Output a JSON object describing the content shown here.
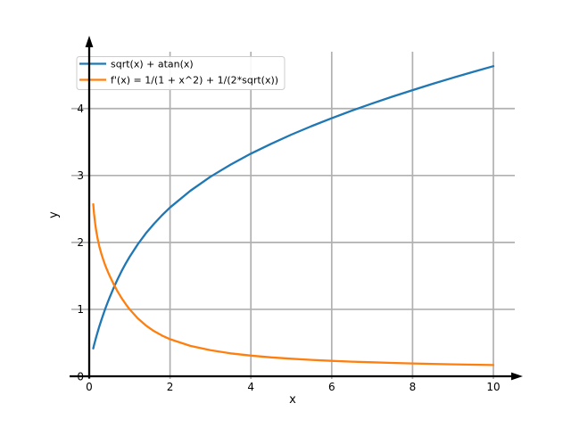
{
  "chart_data": {
    "type": "line",
    "title": "",
    "xlabel": "x",
    "ylabel": "y",
    "xlim": [
      -0.5,
      10.55
    ],
    "ylim": [
      -0.05,
      4.85
    ],
    "x_ticks": [
      0,
      2,
      4,
      6,
      8,
      10
    ],
    "y_ticks": [
      0,
      1,
      2,
      3,
      4
    ],
    "grid": true,
    "grid_color": "#b0b0b0",
    "axis_color": "#000000",
    "legend_position": "upper left",
    "legend_border_color": "#cccccc",
    "x": [
      0.1,
      0.12,
      0.15,
      0.17,
      0.2,
      0.22,
      0.25,
      0.3,
      0.35,
      0.4,
      0.45,
      0.5,
      0.6,
      0.7,
      0.8,
      0.9,
      1.0,
      1.2,
      1.4,
      1.6,
      1.8,
      2.0,
      2.5,
      3.0,
      3.5,
      4.0,
      4.5,
      5.0,
      5.5,
      6.0,
      6.5,
      7.0,
      7.5,
      8.0,
      8.5,
      9.0,
      9.5,
      10.0
    ],
    "series": [
      {
        "name": "sqrt(x) + atan(x)",
        "color": "#1f77b4",
        "values": [
          0.416,
          0.466,
          0.536,
          0.581,
          0.645,
          0.686,
          0.745,
          0.839,
          0.928,
          1.013,
          1.094,
          1.171,
          1.315,
          1.447,
          1.569,
          1.682,
          1.785,
          1.971,
          2.134,
          2.277,
          2.405,
          2.521,
          2.771,
          2.981,
          3.163,
          3.326,
          3.473,
          3.61,
          3.736,
          3.855,
          3.968,
          4.075,
          4.177,
          4.275,
          4.369,
          4.46,
          4.548,
          4.633
        ]
      },
      {
        "name": "f'(x) = 1/(1 + x^2) + 1/(2*sqrt(x))",
        "color": "#ff7f0e",
        "values": [
          2.571,
          2.429,
          2.269,
          2.185,
          2.08,
          2.02,
          1.941,
          1.83,
          1.736,
          1.653,
          1.577,
          1.507,
          1.381,
          1.269,
          1.169,
          1.08,
          1.0,
          0.866,
          0.76,
          0.676,
          0.609,
          0.554,
          0.454,
          0.389,
          0.343,
          0.309,
          0.283,
          0.262,
          0.245,
          0.231,
          0.219,
          0.209,
          0.2,
          0.192,
          0.185,
          0.179,
          0.173,
          0.168
        ]
      }
    ]
  }
}
